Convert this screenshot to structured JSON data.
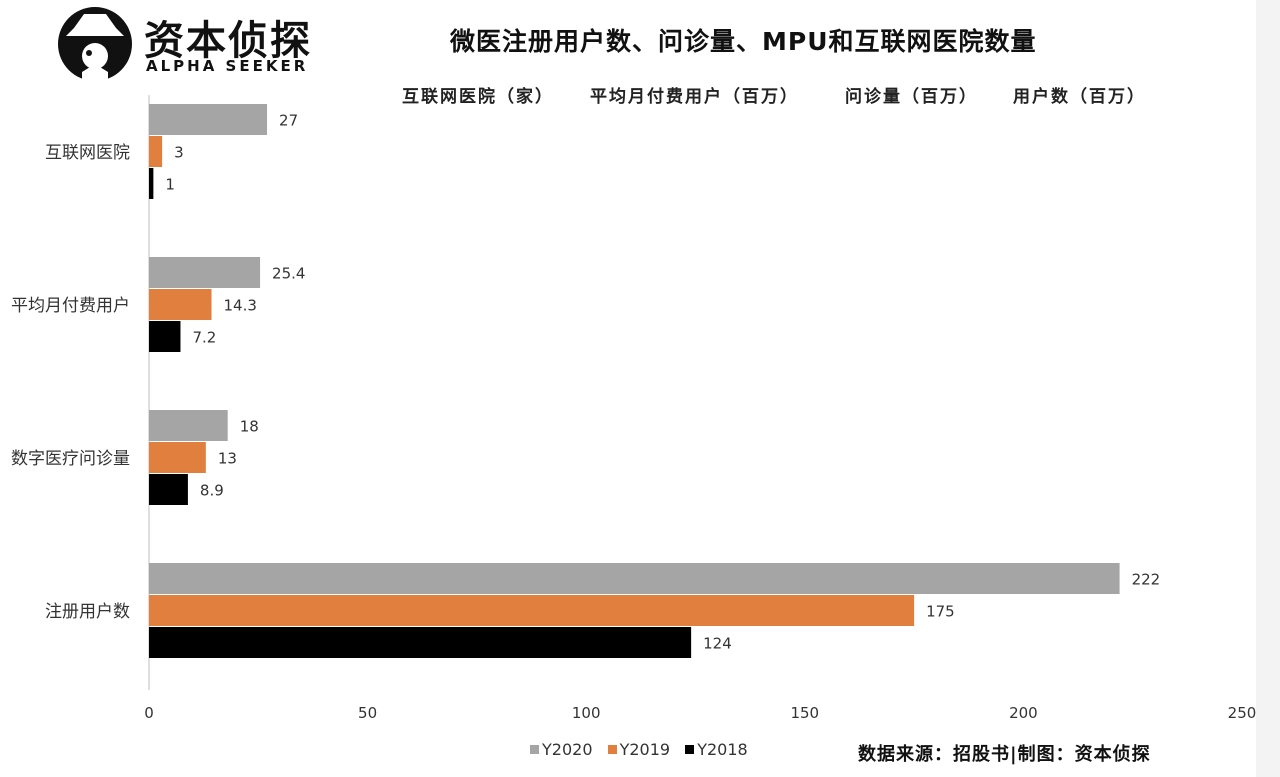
{
  "header": {
    "brand_cn": "资本侦探",
    "brand_en": "ALPHA SEEKER",
    "title": "微医注册用户数、问诊量、MPU和互联网医院数量",
    "units": [
      "互联网医院（家）",
      "平均月付费用户（百万）",
      "问诊量（百万）",
      "用户数（百万）"
    ]
  },
  "chart_data": {
    "type": "bar",
    "orientation": "horizontal",
    "categories": [
      "互联网医院",
      "平均月付费用户",
      "数字医疗问诊量",
      "注册用户数"
    ],
    "series": [
      {
        "name": "Y2020",
        "color": "#a5a5a5",
        "values": [
          27,
          25.4,
          18,
          222
        ],
        "labels": [
          "27",
          "25.4",
          "18",
          "222"
        ]
      },
      {
        "name": "Y2019",
        "color": "#e07f3e",
        "values": [
          3,
          14.3,
          13,
          175
        ],
        "labels": [
          "3",
          "14.3",
          "13",
          "175"
        ]
      },
      {
        "name": "Y2018",
        "color": "#000000",
        "values": [
          1,
          7.2,
          8.9,
          124
        ],
        "labels": [
          "1",
          "7.2",
          "8.9",
          "124"
        ]
      }
    ],
    "xlim": [
      0,
      250
    ],
    "xticks": [
      "0",
      "50",
      "100",
      "150",
      "200",
      "250"
    ],
    "grid": false,
    "legend_position": "bottom"
  },
  "footer": {
    "source": "数据来源：招股书|制图：资本侦探"
  }
}
